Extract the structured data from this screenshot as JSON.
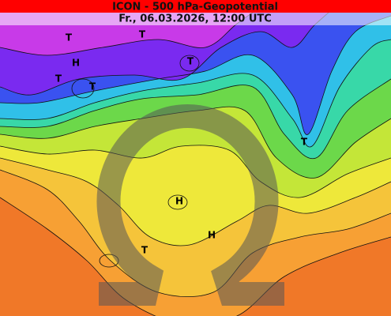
{
  "header": {
    "title": "ICON - 500 hPa-Geopotential",
    "subtitle": "Fr., 06.03.2026, 12:00 UTC"
  },
  "map": {
    "labels": [
      "T",
      "T",
      "H",
      "T",
      "T",
      "T",
      "T",
      "H",
      "H",
      "T"
    ]
  }
}
